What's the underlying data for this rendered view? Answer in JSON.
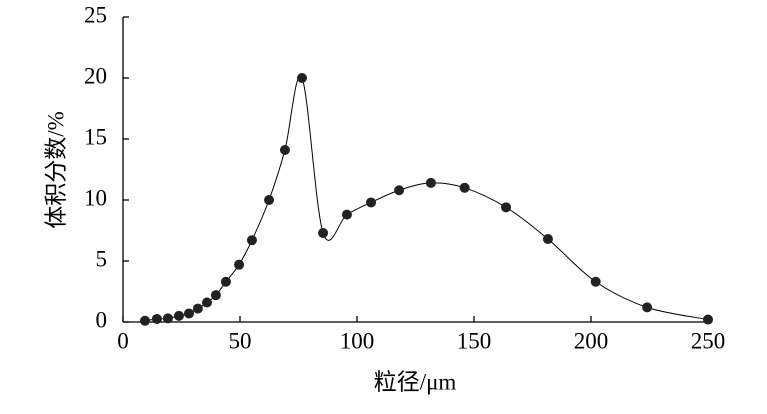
{
  "chart_data": {
    "type": "line",
    "xlabel": "粒径/μm",
    "ylabel": "体积分数/%",
    "x": [
      9.4,
      14.5,
      19.2,
      23.9,
      28.2,
      32,
      35.9,
      39.7,
      44,
      49.6,
      55.1,
      62.4,
      69.2,
      76.5,
      85.5,
      95.7,
      106,
      118,
      131.6,
      146,
      163.7,
      181.6,
      202,
      224,
      250
    ],
    "values": [
      0.1,
      0.25,
      0.3,
      0.5,
      0.7,
      1.1,
      1.6,
      2.2,
      3.3,
      4.7,
      6.7,
      10,
      14.1,
      20,
      7.3,
      8.8,
      9.8,
      10.8,
      11.4,
      11,
      9.4,
      6.8,
      3.3,
      1.2,
      0.2
    ],
    "color": "#000000",
    "markers": true,
    "xlim": [
      0,
      250
    ],
    "xticks": [
      0,
      50,
      100,
      150,
      200,
      250
    ],
    "ylim": [
      0,
      25
    ],
    "yticks": [
      0,
      5,
      10,
      15,
      20,
      25
    ]
  }
}
